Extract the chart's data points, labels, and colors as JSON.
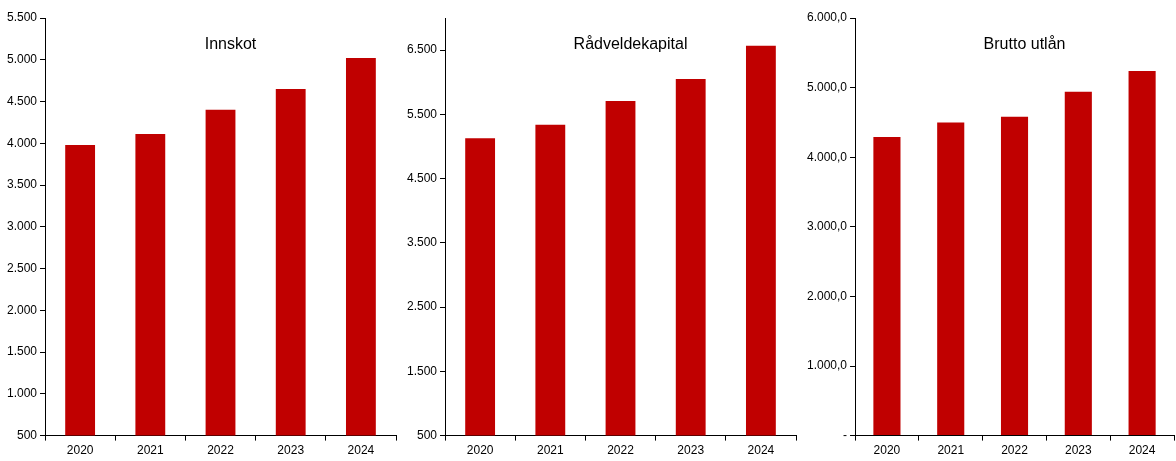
{
  "chart_data": [
    {
      "type": "bar",
      "title": "Innskot",
      "categories": [
        "2020",
        "2021",
        "2022",
        "2023",
        "2024"
      ],
      "values": [
        3980,
        4110,
        4400,
        4650,
        5020
      ],
      "color": "#c00000",
      "ylim": [
        500,
        5500
      ],
      "yticks": [
        500,
        {
          "value": 1000,
          "label": "1.000"
        },
        {
          "value": 1500,
          "label": "1.500"
        },
        {
          "value": 2000,
          "label": "2.000"
        },
        {
          "value": 2500,
          "label": "2.500"
        },
        {
          "value": 3000,
          "label": "3.000"
        },
        {
          "value": 3500,
          "label": "3.500"
        },
        {
          "value": 4000,
          "label": "4.000"
        },
        {
          "value": 4500,
          "label": "4.500"
        },
        {
          "value": 5000,
          "label": "5.000"
        },
        {
          "value": 5500,
          "label": "5.500"
        }
      ],
      "grid": false,
      "legend": false
    },
    {
      "type": "bar",
      "title": "Rådveldekapital",
      "categories": [
        "2020",
        "2021",
        "2022",
        "2023",
        "2024"
      ],
      "values": [
        5130,
        5340,
        5710,
        6050,
        6570
      ],
      "color": "#c00000",
      "ylim": [
        500,
        7000
      ],
      "yticks": [
        500,
        {
          "value": 1500,
          "label": "1.500"
        },
        {
          "value": 2500,
          "label": "2.500"
        },
        {
          "value": 3500,
          "label": "3.500"
        },
        {
          "value": 4500,
          "label": "4.500"
        },
        {
          "value": 5500,
          "label": "5.500"
        },
        {
          "value": 6500,
          "label": "6.500"
        }
      ],
      "grid": false,
      "legend": false
    },
    {
      "type": "bar",
      "title": "Brutto utlån",
      "categories": [
        "2020",
        "2021",
        "2022",
        "2023",
        "2024"
      ],
      "values": [
        4290,
        4500,
        4580,
        4940,
        5240
      ],
      "color": "#c00000",
      "ylim": [
        0,
        6000
      ],
      "yticks": [
        {
          "value": 0,
          "label": "-"
        },
        {
          "value": 1000,
          "label": "1.000,0"
        },
        {
          "value": 2000,
          "label": "2.000,0"
        },
        {
          "value": 3000,
          "label": "3.000,0"
        },
        {
          "value": 4000,
          "label": "4.000,0"
        },
        {
          "value": 5000,
          "label": "5.000,0"
        },
        {
          "value": 6000,
          "label": "6.000,0"
        }
      ],
      "grid": false,
      "legend": false
    }
  ]
}
